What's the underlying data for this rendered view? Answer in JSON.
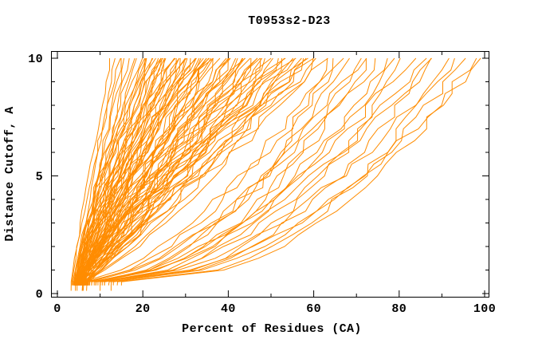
{
  "page": {
    "background": "#ffffff"
  },
  "chart_data": {
    "type": "line",
    "title": "T0953s2-D23",
    "xlabel": "Percent of Residues (CA)",
    "ylabel": "Distance Cutoff, A",
    "xlim": [
      0,
      100
    ],
    "ylim": [
      0,
      10
    ],
    "x_major_ticks": [
      0,
      20,
      40,
      60,
      80,
      100
    ],
    "x_minor_step": 10,
    "y_major_ticks": [
      0,
      5,
      10
    ],
    "y_minor_step": 1,
    "grid": "off",
    "legend": "none",
    "line_color": "#ff8c00",
    "axis_color": "#000000",
    "background": "#ffffff",
    "cutoff_step": 0.5,
    "cutoff_min": 0.5,
    "cutoff_max": 10,
    "curves_format": [
      "percent_at_cutoff_0.5",
      "percent_at_cutoff_10",
      "shape_exponent"
    ],
    "curves": [
      [
        3.2,
        12.5,
        1.05
      ],
      [
        3.6,
        13.6,
        0.95
      ],
      [
        3.4,
        14.4,
        1.15
      ],
      [
        4.0,
        15.2,
        1.0
      ],
      [
        4.3,
        16.0,
        1.1
      ],
      [
        3.8,
        16.8,
        0.9
      ],
      [
        4.6,
        17.6,
        1.2
      ],
      [
        4.2,
        18.6,
        1.0
      ],
      [
        4.4,
        19.5,
        1.3
      ],
      [
        5.0,
        21.0,
        1.4
      ],
      [
        4.1,
        22.5,
        1.35
      ],
      [
        5.4,
        24.0,
        1.45
      ],
      [
        4.7,
        25.5,
        1.3
      ],
      [
        5.8,
        27.0,
        1.5
      ],
      [
        4.3,
        28.5,
        1.35
      ],
      [
        5.2,
        30.0,
        1.4
      ],
      [
        4.9,
        31.5,
        1.3
      ],
      [
        5.6,
        33.0,
        1.45
      ],
      [
        4.5,
        34.5,
        1.35
      ],
      [
        5.3,
        36.0,
        1.4
      ],
      [
        4.0,
        20.0,
        0.9
      ],
      [
        4.5,
        20.6,
        1.1
      ],
      [
        5.0,
        21.2,
        0.8
      ],
      [
        5.5,
        21.8,
        1.0
      ],
      [
        3.8,
        22.4,
        1.2
      ],
      [
        6.0,
        23.0,
        0.95
      ],
      [
        4.2,
        23.6,
        0.85
      ],
      [
        6.5,
        24.2,
        1.05
      ],
      [
        4.8,
        24.8,
        1.25
      ],
      [
        5.2,
        25.4,
        0.9
      ],
      [
        7.0,
        26.0,
        1.0
      ],
      [
        4.0,
        26.6,
        0.8
      ],
      [
        5.8,
        27.2,
        1.15
      ],
      [
        6.2,
        27.8,
        0.95
      ],
      [
        4.4,
        28.4,
        1.3
      ],
      [
        5.0,
        29.0,
        0.85
      ],
      [
        7.5,
        29.6,
        1.05
      ],
      [
        4.6,
        30.2,
        0.9
      ],
      [
        5.4,
        30.8,
        1.2
      ],
      [
        6.8,
        31.4,
        0.8
      ],
      [
        4.2,
        32.0,
        1.0
      ],
      [
        5.0,
        32.6,
        1.1
      ],
      [
        7.2,
        33.2,
        0.9
      ],
      [
        4.8,
        33.8,
        1.25
      ],
      [
        5.6,
        34.4,
        0.85
      ],
      [
        6.0,
        35.0,
        1.05
      ],
      [
        4.4,
        35.6,
        0.95
      ],
      [
        5.2,
        36.2,
        1.15
      ],
      [
        6.4,
        36.8,
        0.8
      ],
      [
        4.0,
        37.4,
        1.0
      ],
      [
        5.8,
        38.0,
        1.2
      ],
      [
        7.0,
        38.6,
        0.9
      ],
      [
        4.6,
        39.2,
        1.05
      ],
      [
        5.4,
        39.8,
        0.85
      ],
      [
        6.2,
        40.4,
        1.3
      ],
      [
        4.2,
        41.0,
        0.95
      ],
      [
        5.0,
        41.6,
        1.1
      ],
      [
        6.6,
        42.2,
        0.8
      ],
      [
        4.8,
        42.8,
        1.0
      ],
      [
        5.6,
        43.4,
        1.2
      ],
      [
        7.4,
        44.0,
        0.9
      ],
      [
        4.4,
        44.6,
        1.05
      ],
      [
        5.2,
        45.2,
        0.85
      ],
      [
        6.0,
        45.8,
        1.15
      ],
      [
        4.0,
        46.4,
        0.95
      ],
      [
        5.8,
        47.0,
        1.25
      ],
      [
        6.8,
        47.6,
        0.8
      ],
      [
        4.6,
        48.2,
        1.0
      ],
      [
        5.4,
        48.8,
        1.1
      ],
      [
        6.2,
        49.4,
        0.9
      ],
      [
        4.2,
        50.0,
        1.2
      ],
      [
        5.0,
        50.8,
        0.85
      ],
      [
        7.0,
        51.6,
        1.05
      ],
      [
        4.8,
        52.4,
        0.95
      ],
      [
        5.6,
        53.2,
        1.15
      ],
      [
        6.4,
        54.0,
        0.8
      ],
      [
        4.4,
        54.8,
        1.0
      ],
      [
        5.2,
        55.6,
        1.25
      ],
      [
        6.0,
        56.4,
        0.9
      ],
      [
        4.0,
        57.2,
        1.1
      ],
      [
        5.8,
        58.0,
        0.85
      ],
      [
        6.6,
        58.8,
        1.05
      ],
      [
        4.6,
        59.6,
        0.95
      ],
      [
        5.4,
        60.4,
        1.2
      ],
      [
        6.2,
        61.2,
        0.8
      ],
      [
        4.2,
        62.0,
        1.0
      ],
      [
        5.0,
        62.5,
        0.9
      ],
      [
        7.0,
        64.0,
        0.6
      ],
      [
        8.0,
        65.5,
        0.5
      ],
      [
        6.0,
        67.0,
        0.65
      ],
      [
        9.0,
        68.5,
        0.55
      ],
      [
        10.0,
        70.0,
        0.45
      ],
      [
        7.5,
        71.5,
        0.6
      ],
      [
        8.5,
        73.0,
        0.5
      ],
      [
        6.5,
        75.0,
        0.62
      ],
      [
        11.0,
        77.0,
        0.48
      ],
      [
        9.5,
        79.0,
        0.55
      ],
      [
        12.0,
        81.0,
        0.42
      ],
      [
        8.0,
        83.0,
        0.58
      ],
      [
        10.0,
        85.0,
        0.5
      ],
      [
        13.0,
        87.0,
        0.45
      ],
      [
        9.0,
        89.0,
        0.6
      ],
      [
        14.0,
        91.0,
        0.4
      ],
      [
        11.0,
        93.0,
        0.52
      ],
      [
        12.5,
        95.0,
        0.46
      ],
      [
        15.0,
        97.0,
        0.42
      ],
      [
        10.5,
        99.0,
        0.5
      ]
    ]
  }
}
